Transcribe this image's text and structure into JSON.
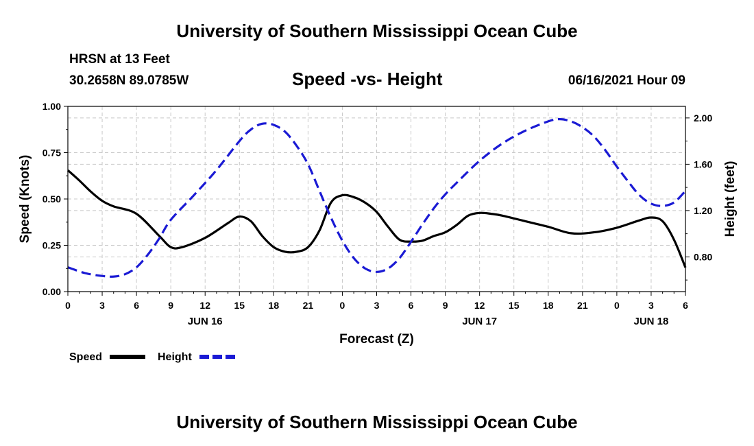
{
  "header": {
    "title": "University of Southern Mississippi Ocean Cube",
    "station": "HRSN at 13 Feet",
    "coords": "30.2658N  89.0785W",
    "chart_title": "Speed -vs- Height",
    "datetime": "06/16/2021 Hour 09"
  },
  "footer": {
    "title": "University of Southern Mississippi Ocean Cube"
  },
  "colors": {
    "speed": "#000000",
    "height": "#1a1ad4",
    "grid": "#c8c8c8"
  },
  "chart_data": {
    "type": "line",
    "title": "Speed -vs- Height",
    "xlabel": "Forecast (Z)",
    "ylabel": "Speed (Knots)",
    "y2label": "Height (feet)",
    "xlim": [
      0,
      54
    ],
    "ylim": [
      0,
      1
    ],
    "y2lim": [
      0.5,
      2.1
    ],
    "yticks": [
      0,
      0.25,
      0.5,
      0.75,
      1.0
    ],
    "ytick_labels": [
      "0.00",
      "0.25",
      "0.50",
      "0.75",
      "1.00"
    ],
    "y2ticks": [
      0.8,
      1.2,
      1.6,
      2.0
    ],
    "y2tick_labels": [
      "0.80",
      "1.20",
      "1.60",
      "2.00"
    ],
    "xticks": [
      0,
      3,
      6,
      9,
      12,
      15,
      18,
      21,
      24,
      27,
      30,
      33,
      36,
      39,
      42,
      45,
      48,
      51,
      54
    ],
    "xtick_labels": [
      "0",
      "3",
      "6",
      "9",
      "12",
      "15",
      "18",
      "21",
      "0",
      "3",
      "6",
      "9",
      "12",
      "15",
      "18",
      "21",
      "0",
      "3",
      "6"
    ],
    "date_labels": [
      {
        "x": 12,
        "label": "JUN 16"
      },
      {
        "x": 36,
        "label": "JUN 17"
      },
      {
        "x": 51,
        "label": "JUN 18"
      }
    ],
    "grid": true,
    "legend": [
      "Speed",
      "Height"
    ],
    "series": [
      {
        "name": "Speed",
        "axis": "left",
        "style": "solid",
        "x": [
          0,
          1,
          2,
          3,
          4,
          6,
          8,
          9,
          10,
          12,
          14,
          15,
          16,
          17,
          18,
          19,
          20,
          21,
          22,
          23,
          24,
          25,
          26,
          27,
          28,
          29,
          30,
          31,
          32,
          33,
          34,
          35,
          36,
          37,
          38,
          40,
          42,
          44,
          46,
          48,
          50,
          51,
          52,
          53,
          54
        ],
        "values": [
          0.655,
          0.6,
          0.54,
          0.49,
          0.46,
          0.42,
          0.3,
          0.24,
          0.24,
          0.29,
          0.37,
          0.405,
          0.38,
          0.3,
          0.24,
          0.215,
          0.215,
          0.24,
          0.33,
          0.48,
          0.52,
          0.51,
          0.48,
          0.43,
          0.35,
          0.28,
          0.27,
          0.275,
          0.3,
          0.32,
          0.36,
          0.41,
          0.425,
          0.42,
          0.41,
          0.38,
          0.35,
          0.315,
          0.32,
          0.345,
          0.385,
          0.4,
          0.38,
          0.28,
          0.13
        ]
      },
      {
        "name": "Height",
        "axis": "right",
        "style": "dashed",
        "x": [
          0,
          1.5,
          3,
          4,
          5,
          6,
          7,
          8,
          9,
          11,
          13,
          15,
          16,
          17,
          18,
          19,
          20,
          21,
          22,
          23,
          24,
          25,
          26,
          27,
          28,
          29,
          30,
          31,
          32,
          33,
          34,
          36,
          38,
          40,
          42,
          43,
          44,
          45,
          46,
          47,
          48,
          49,
          50,
          51,
          52,
          53,
          54
        ],
        "values": [
          0.71,
          0.66,
          0.635,
          0.63,
          0.65,
          0.71,
          0.82,
          0.96,
          1.12,
          1.33,
          1.55,
          1.8,
          1.9,
          1.95,
          1.94,
          1.88,
          1.76,
          1.6,
          1.37,
          1.14,
          0.94,
          0.79,
          0.7,
          0.67,
          0.7,
          0.79,
          0.93,
          1.08,
          1.22,
          1.34,
          1.44,
          1.63,
          1.78,
          1.89,
          1.97,
          1.99,
          1.97,
          1.92,
          1.84,
          1.72,
          1.58,
          1.45,
          1.33,
          1.26,
          1.24,
          1.27,
          1.37
        ]
      }
    ]
  }
}
